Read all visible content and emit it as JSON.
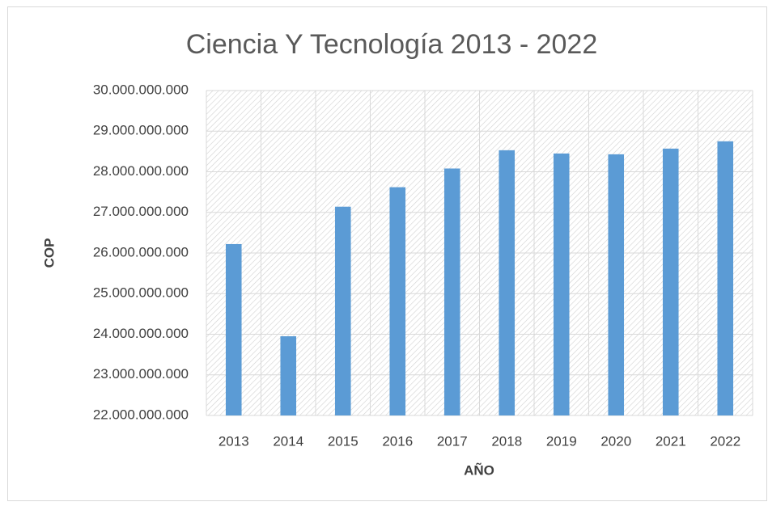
{
  "chart_data": {
    "type": "bar",
    "title": "Ciencia Y Tecnología 2013 - 2022",
    "x_label": "AÑO",
    "y_label": "COP",
    "categories": [
      "2013",
      "2014",
      "2015",
      "2016",
      "2017",
      "2018",
      "2019",
      "2020",
      "2021",
      "2022"
    ],
    "values": [
      26220000000,
      23950000000,
      27140000000,
      27620000000,
      28080000000,
      28530000000,
      28450000000,
      28430000000,
      28570000000,
      28750000000
    ],
    "color": "#5b9bd5",
    "ylim": [
      22000000000,
      30000000000
    ],
    "yticks": [
      {
        "value": 22000000000,
        "label": "22.000.000.000"
      },
      {
        "value": 23000000000,
        "label": "23.000.000.000"
      },
      {
        "value": 24000000000,
        "label": "24.000.000.000"
      },
      {
        "value": 25000000000,
        "label": "25.000.000.000"
      },
      {
        "value": 26000000000,
        "label": "26.000.000.000"
      },
      {
        "value": 27000000000,
        "label": "27.000.000.000"
      },
      {
        "value": 28000000000,
        "label": "28.000.000.000"
      },
      {
        "value": 29000000000,
        "label": "29.000.000.000"
      },
      {
        "value": 30000000000,
        "label": "30.000.000.000"
      }
    ],
    "grid": true
  }
}
